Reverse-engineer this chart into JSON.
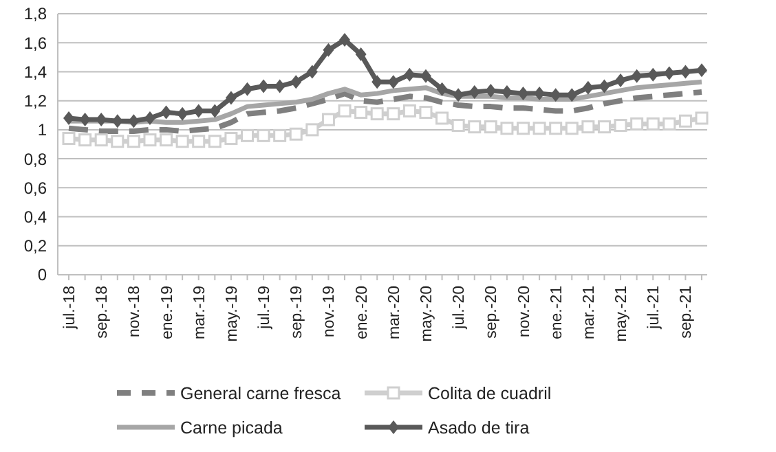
{
  "chart_data": {
    "type": "line",
    "categories": [
      "jul.-18",
      null,
      "sep.-18",
      null,
      "nov.-18",
      null,
      "ene.-19",
      null,
      "mar.-19",
      null,
      "may.-19",
      null,
      "jul.-19",
      null,
      "sep.-19",
      null,
      "nov.-19",
      null,
      "ene.-20",
      null,
      "mar.-20",
      null,
      "may.-20",
      null,
      "jul.-20",
      null,
      "sep.-20",
      null,
      "nov.-20",
      null,
      "ene.-21",
      null,
      "mar.-21",
      null,
      "may.-21",
      null,
      "jul.-21",
      null,
      "sep.-21",
      null
    ],
    "ylim": [
      0,
      1.8
    ],
    "yticks": [
      {
        "value": 0,
        "label": "0"
      },
      {
        "value": 0.2,
        "label": "0,2"
      },
      {
        "value": 0.4,
        "label": "0,4"
      },
      {
        "value": 0.6,
        "label": "0,6"
      },
      {
        "value": 0.8,
        "label": "0,8"
      },
      {
        "value": 1,
        "label": "1"
      },
      {
        "value": 1.2,
        "label": "1,2"
      },
      {
        "value": 1.4,
        "label": "1,4"
      },
      {
        "value": 1.6,
        "label": "1,6"
      },
      {
        "value": 1.8,
        "label": "1,8"
      }
    ],
    "grid": "y",
    "legend": "bottom",
    "series": [
      {
        "name": "General carne fresca",
        "color": "#7f7f7f",
        "line_style": "dashed",
        "marker": "none",
        "values": [
          1.01,
          1.0,
          0.99,
          0.99,
          0.99,
          1.0,
          1.0,
          0.99,
          1.0,
          1.01,
          1.05,
          1.11,
          1.12,
          1.13,
          1.15,
          1.18,
          1.21,
          1.25,
          1.2,
          1.19,
          1.21,
          1.23,
          1.22,
          1.19,
          1.17,
          1.16,
          1.16,
          1.15,
          1.15,
          1.14,
          1.13,
          1.13,
          1.15,
          1.18,
          1.2,
          1.22,
          1.23,
          1.24,
          1.25,
          1.26
        ]
      },
      {
        "name": "Colita de cuadril",
        "color": "#cfcfcf",
        "line_style": "solid",
        "marker": "square",
        "values": [
          0.94,
          0.93,
          0.93,
          0.92,
          0.92,
          0.93,
          0.93,
          0.92,
          0.92,
          0.92,
          0.94,
          0.96,
          0.96,
          0.96,
          0.97,
          1.0,
          1.07,
          1.13,
          1.12,
          1.11,
          1.11,
          1.13,
          1.12,
          1.08,
          1.03,
          1.02,
          1.02,
          1.01,
          1.01,
          1.01,
          1.01,
          1.01,
          1.02,
          1.02,
          1.03,
          1.04,
          1.04,
          1.04,
          1.06,
          1.08
        ]
      },
      {
        "name": "Carne picada",
        "color": "#a6a6a6",
        "line_style": "solid",
        "marker": "none",
        "values": [
          1.06,
          1.06,
          1.06,
          1.06,
          1.05,
          1.06,
          1.05,
          1.05,
          1.06,
          1.07,
          1.11,
          1.16,
          1.17,
          1.18,
          1.19,
          1.21,
          1.25,
          1.28,
          1.24,
          1.25,
          1.27,
          1.28,
          1.29,
          1.25,
          1.23,
          1.23,
          1.23,
          1.22,
          1.22,
          1.21,
          1.21,
          1.21,
          1.23,
          1.25,
          1.27,
          1.29,
          1.3,
          1.31,
          1.32,
          1.33
        ]
      },
      {
        "name": "Asado de tira",
        "color": "#595959",
        "line_style": "solid",
        "marker": "diamond",
        "values": [
          1.08,
          1.07,
          1.07,
          1.06,
          1.06,
          1.08,
          1.12,
          1.11,
          1.13,
          1.13,
          1.22,
          1.28,
          1.3,
          1.3,
          1.33,
          1.4,
          1.55,
          1.62,
          1.52,
          1.33,
          1.33,
          1.38,
          1.37,
          1.28,
          1.24,
          1.26,
          1.27,
          1.26,
          1.25,
          1.25,
          1.24,
          1.24,
          1.29,
          1.3,
          1.34,
          1.37,
          1.38,
          1.39,
          1.4,
          1.41
        ]
      }
    ]
  }
}
